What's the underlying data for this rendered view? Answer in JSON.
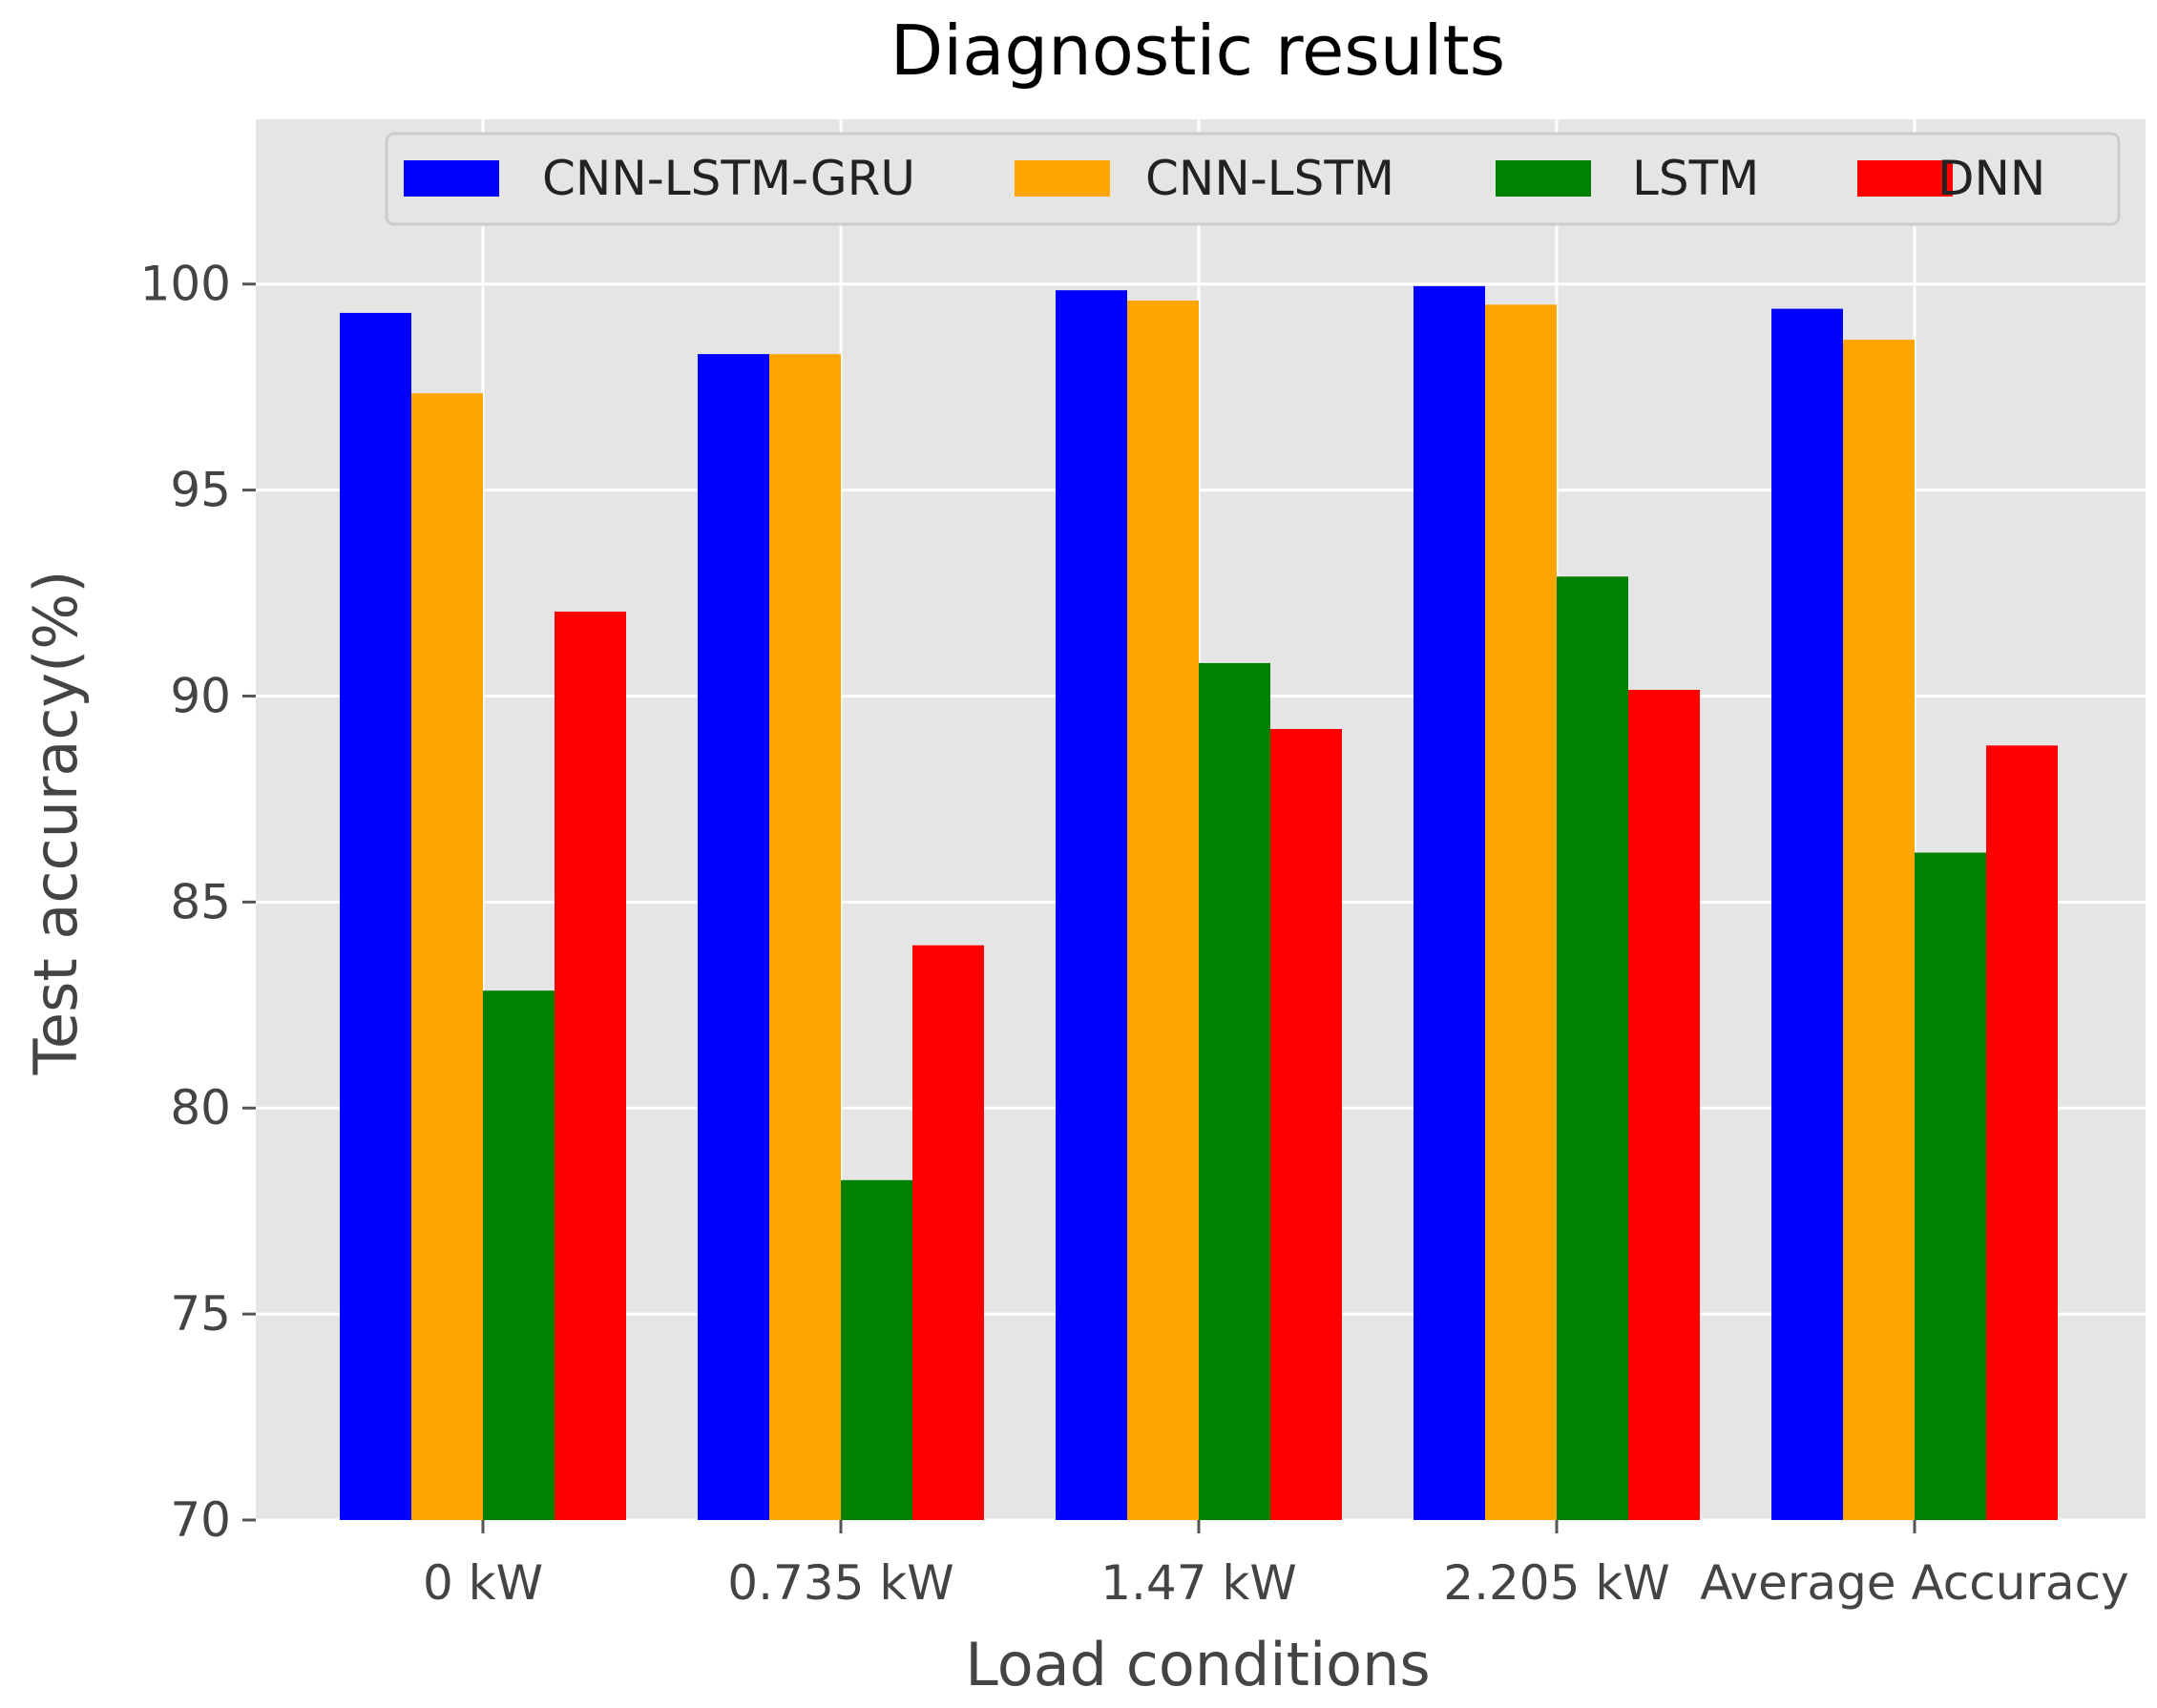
{
  "chart_data": {
    "type": "bar",
    "title": "Diagnostic results",
    "xlabel": "Load conditions",
    "ylabel": "Test accuracy(%)",
    "ylim": [
      70,
      104
    ],
    "yticks": [
      70,
      75,
      80,
      85,
      90,
      95,
      100
    ],
    "grid": true,
    "legend_position": "top",
    "categories": [
      "0 kW",
      "0.735 kW",
      "1.47 kW",
      "2.205 kW",
      "Average Accuracy"
    ],
    "series": [
      {
        "name": "CNN-LSTM-GRU",
        "color": "#0000ff",
        "values": [
          99.3,
          98.3,
          99.85,
          99.95,
          99.4
        ]
      },
      {
        "name": "CNN-LSTM",
        "color": "#ffa500",
        "values": [
          97.35,
          98.3,
          99.6,
          99.5,
          98.65
        ]
      },
      {
        "name": "LSTM",
        "color": "#008000",
        "values": [
          82.85,
          78.25,
          90.8,
          92.9,
          86.2
        ]
      },
      {
        "name": "DNN",
        "color": "#ff0000",
        "values": [
          92.05,
          83.95,
          89.2,
          90.15,
          88.8
        ]
      }
    ]
  },
  "colors": {
    "plot_background": "#e5e5e5",
    "grid": "#ffffff",
    "legend_background": "#e5e5e5",
    "legend_border": "#cccccc"
  }
}
